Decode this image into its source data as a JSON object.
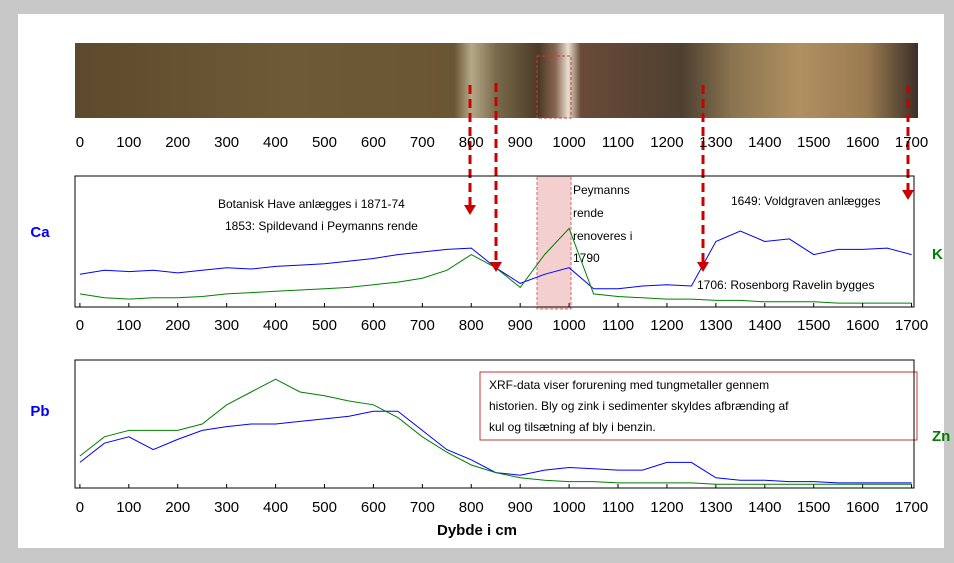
{
  "chart_data": [
    {
      "type": "strip",
      "xlim": [
        -10,
        1705
      ],
      "xticks": [
        0,
        100,
        200,
        300,
        400,
        500,
        600,
        700,
        800,
        900,
        1000,
        1100,
        1200,
        1300,
        1400,
        1500,
        1600,
        1700
      ]
    },
    {
      "type": "line",
      "xlim": [
        -10,
        1705
      ],
      "ylim": [
        0,
        100
      ],
      "xticks": [
        0,
        100,
        200,
        300,
        400,
        500,
        600,
        700,
        800,
        900,
        1000,
        1100,
        1200,
        1300,
        1400,
        1500,
        1600,
        1700
      ],
      "x": [
        0,
        50,
        100,
        150,
        200,
        250,
        300,
        350,
        400,
        450,
        500,
        550,
        600,
        650,
        700,
        750,
        800,
        850,
        900,
        950,
        1000,
        1050,
        1100,
        1150,
        1200,
        1250,
        1300,
        1350,
        1400,
        1450,
        1500,
        1550,
        1600,
        1650,
        1700
      ],
      "series": [
        {
          "name": "Ca",
          "color": "#0000ff",
          "values": [
            25,
            28,
            27,
            28,
            26,
            28,
            30,
            29,
            31,
            32,
            33,
            35,
            37,
            40,
            42,
            44,
            45,
            30,
            18,
            25,
            30,
            14,
            14,
            16,
            17,
            16,
            50,
            58,
            50,
            52,
            40,
            44,
            44,
            45,
            40
          ]
        },
        {
          "name": "K",
          "color": "#008000",
          "values": [
            10,
            7,
            6,
            7,
            7,
            8,
            10,
            11,
            12,
            13,
            14,
            15,
            17,
            19,
            22,
            28,
            40,
            30,
            15,
            40,
            60,
            10,
            8,
            7,
            6,
            6,
            5,
            5,
            4,
            4,
            4,
            3,
            3,
            3,
            3
          ]
        }
      ],
      "annotations": [
        "Botanisk Have anlægges i 1871-74",
        "1853: Spildevand i Peymanns rende",
        "Peymanns",
        "rende",
        "renoveres i",
        "1790",
        "1649: Voldgraven anlægges",
        "1706: Rosenborg Ravelin bygges"
      ]
    },
    {
      "type": "line",
      "xlim": [
        -10,
        1705
      ],
      "ylim": [
        0,
        100
      ],
      "xticks": [
        0,
        100,
        200,
        300,
        400,
        500,
        600,
        700,
        800,
        900,
        1000,
        1100,
        1200,
        1300,
        1400,
        1500,
        1600,
        1700
      ],
      "xlabel": "Dybde i cm",
      "x": [
        0,
        50,
        100,
        150,
        200,
        250,
        300,
        350,
        400,
        450,
        500,
        550,
        600,
        650,
        700,
        750,
        800,
        850,
        900,
        950,
        1000,
        1050,
        1100,
        1150,
        1200,
        1250,
        1300,
        1350,
        1400,
        1450,
        1500,
        1550,
        1600,
        1650,
        1700
      ],
      "series": [
        {
          "name": "Pb",
          "color": "#0000ff",
          "values": [
            20,
            35,
            40,
            30,
            38,
            45,
            48,
            50,
            50,
            52,
            54,
            56,
            60,
            60,
            45,
            30,
            22,
            12,
            10,
            14,
            16,
            15,
            14,
            14,
            20,
            20,
            8,
            6,
            6,
            5,
            5,
            4,
            4,
            4,
            4
          ]
        },
        {
          "name": "Zn",
          "color": "#008000",
          "values": [
            25,
            40,
            45,
            45,
            45,
            50,
            65,
            75,
            85,
            75,
            72,
            68,
            65,
            55,
            40,
            28,
            18,
            12,
            8,
            6,
            5,
            5,
            4,
            4,
            4,
            4,
            3,
            3,
            3,
            3,
            3,
            3,
            3,
            3,
            3
          ]
        }
      ],
      "textbox": [
        "XRF-data viser forurening med tungmetaller gennem",
        "historien. Bly og zink i sedimenter skyldes afbrænding af",
        "kul  og tilsætning af bly i benzin."
      ]
    }
  ]
}
